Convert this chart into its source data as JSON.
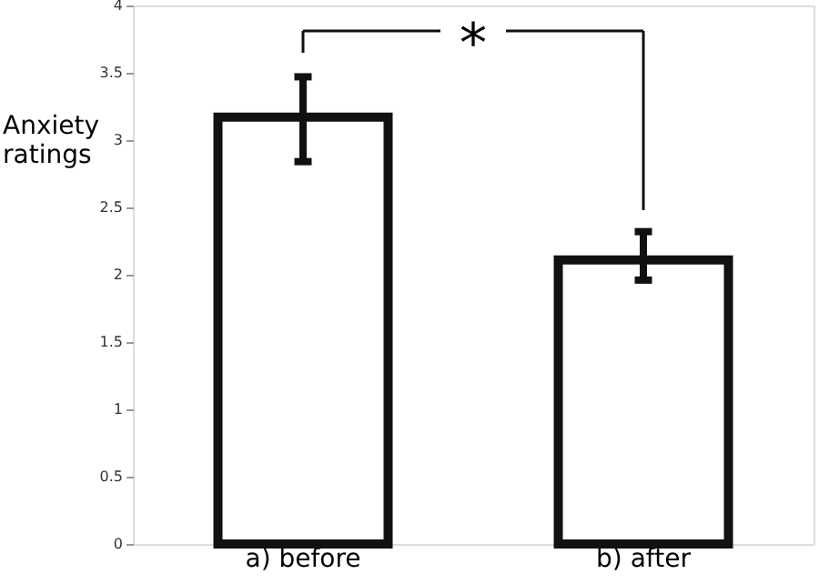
{
  "chart_data": {
    "type": "bar",
    "categories": [
      "a) before",
      "b) after"
    ],
    "values": [
      3.17,
      2.11
    ],
    "errors": [
      [
        2.84,
        3.47
      ],
      [
        1.96,
        2.32
      ]
    ],
    "color": "#ffffff",
    "ylabel": "Anxiety ratings",
    "ylim": [
      0,
      4
    ],
    "yticks": [
      0,
      0.5,
      1,
      1.5,
      2,
      2.5,
      3,
      3.5,
      4
    ],
    "annotations": [
      "*"
    ],
    "grid": false
  }
}
